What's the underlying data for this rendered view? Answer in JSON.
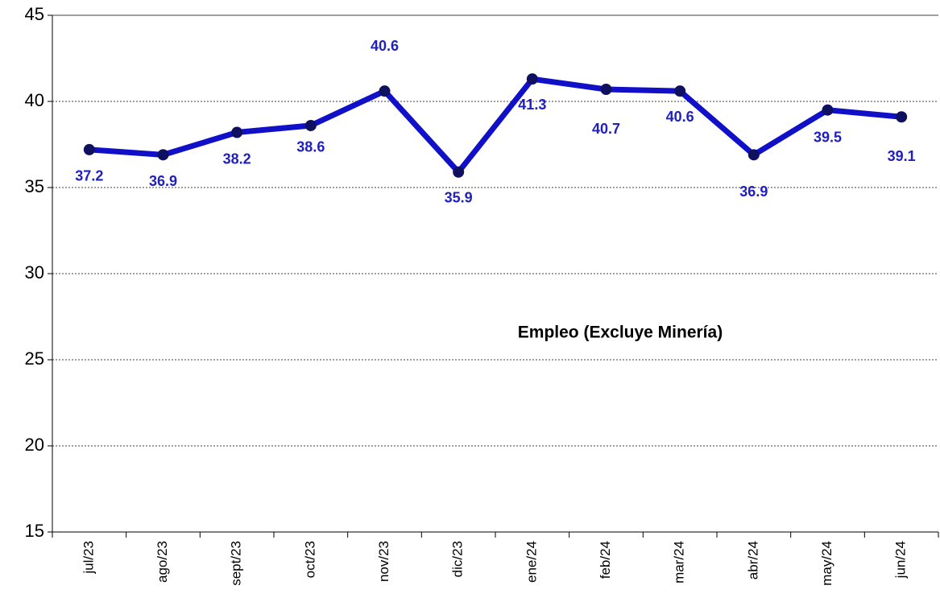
{
  "chart_data": {
    "type": "line",
    "annotation": "Empleo (Excluye Minería)",
    "categories": [
      "jul/23",
      "ago/23",
      "sept/23",
      "oct/23",
      "nov/23",
      "dic/23",
      "ene/24",
      "feb/24",
      "mar/24",
      "abr/24",
      "may/24",
      "jun/24"
    ],
    "series": [
      {
        "name": "Empleo",
        "color": "#1010c8",
        "values": [
          37.2,
          36.9,
          38.2,
          38.6,
          40.6,
          35.9,
          41.3,
          40.7,
          40.6,
          36.9,
          39.5,
          39.1
        ]
      }
    ],
    "ylim": [
      15,
      45
    ],
    "yticks": [
      15,
      20,
      25,
      30,
      35,
      40,
      45
    ],
    "grid": true
  }
}
